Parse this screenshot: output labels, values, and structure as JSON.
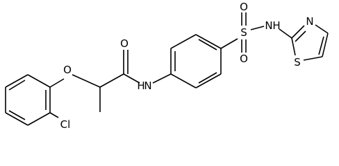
{
  "atoms": [
    {
      "label": "O"
    },
    {
      "label": "O"
    },
    {
      "label": "N"
    },
    {
      "label": "H"
    },
    {
      "label": "S"
    },
    {
      "label": "O"
    },
    {
      "label": "O"
    },
    {
      "label": "N"
    },
    {
      "label": "H"
    },
    {
      "label": "N"
    },
    {
      "label": "S"
    },
    {
      "label": "Cl"
    }
  ]
}
